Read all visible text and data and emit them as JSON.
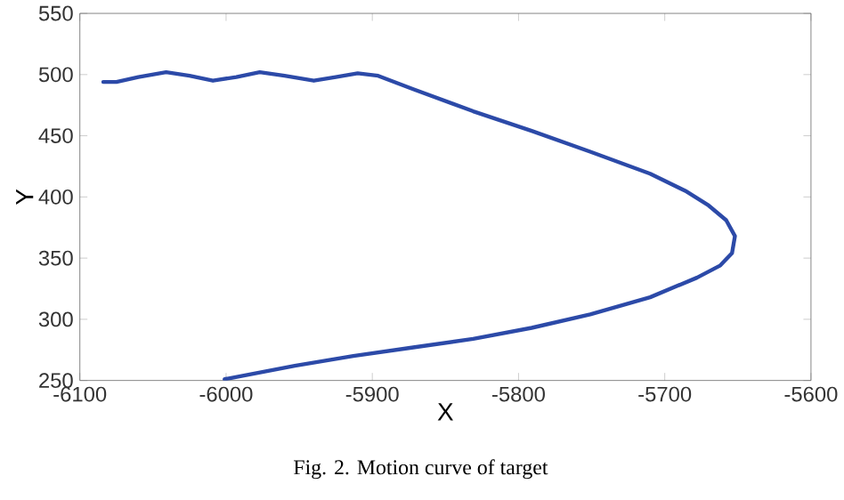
{
  "chart_data": {
    "type": "line",
    "xlabel": "X",
    "ylabel": "Y",
    "annotations": [
      "Fig. 2.   Motion curve of target"
    ],
    "xlim": [
      -6100,
      -5600
    ],
    "ylim": [
      250,
      550
    ],
    "xticks": [
      -6100,
      -6000,
      -5900,
      -5800,
      -5700,
      -5600
    ],
    "yticks": [
      250,
      300,
      350,
      400,
      450,
      500,
      550
    ],
    "grid": false,
    "marker": "none",
    "line_style": "solid",
    "series": [
      {
        "color": "#2c4aa8",
        "x": [
          -6084,
          -6075,
          -6060,
          -6041,
          -6025,
          -6009,
          -5993,
          -5977,
          -5960,
          -5940,
          -5925,
          -5910,
          -5896,
          -5872,
          -5831,
          -5791,
          -5751,
          -5710,
          -5686,
          -5670,
          -5658,
          -5652,
          -5654,
          -5662,
          -5678,
          -5710,
          -5751,
          -5791,
          -5831,
          -5872,
          -5913,
          -5953,
          -6001
        ],
        "values": [
          494,
          494,
          498,
          502,
          499,
          495,
          498,
          502,
          499,
          495,
          498,
          501,
          499,
          488,
          470,
          454,
          437,
          419,
          405,
          393,
          381,
          368,
          354,
          344,
          334,
          318,
          304,
          293,
          284,
          277,
          270,
          262,
          251
        ]
      }
    ]
  }
}
